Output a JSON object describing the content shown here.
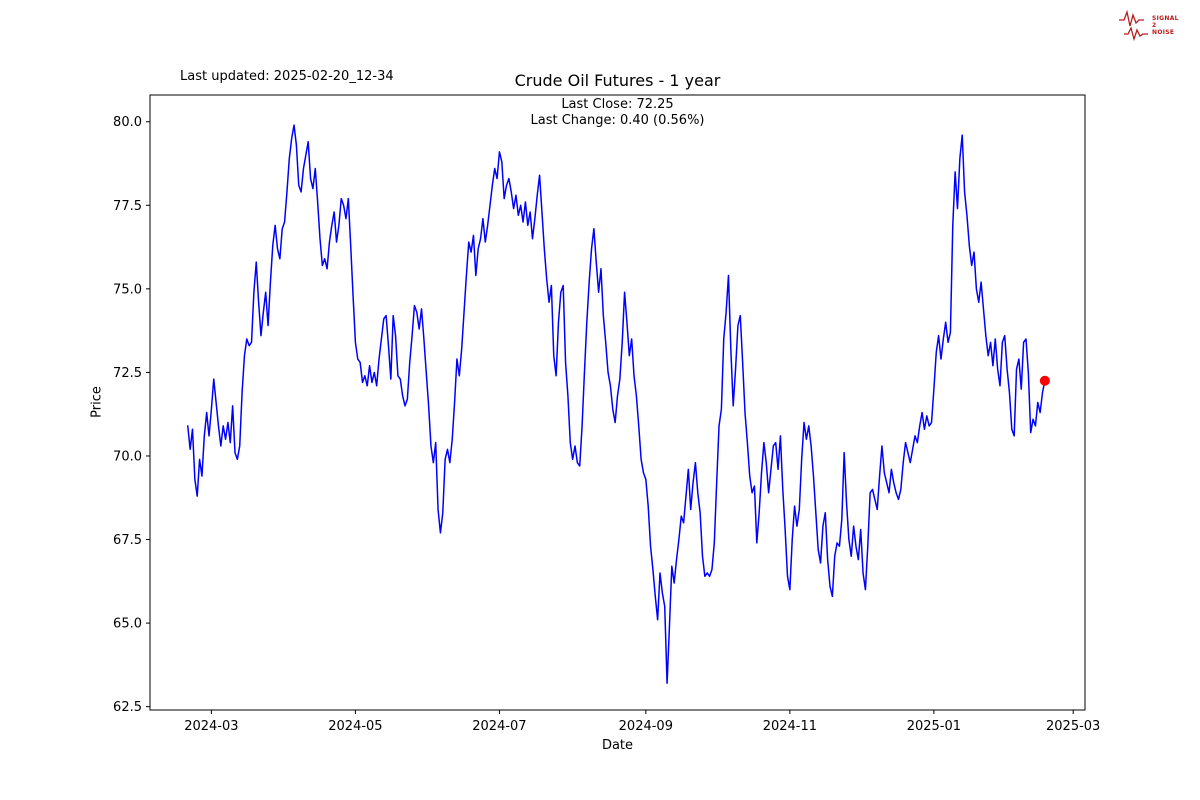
{
  "header": {
    "last_updated": "Last updated: 2025-02-20_12-34",
    "title": "Crude Oil Futures - 1 year",
    "subtitle_line1": "Last Close: 72.25",
    "subtitle_line2": "Last Change: 0.40 (0.56%)"
  },
  "logo": {
    "line1": "SIGNAL",
    "line2": "2",
    "line3": "NOISE",
    "color": "#b91c1c"
  },
  "chart_data": {
    "type": "line",
    "title": "Crude Oil Futures - 1 year",
    "xlabel": "Date",
    "ylabel": "Price",
    "last_close": 72.25,
    "last_change": "0.40 (0.56%)",
    "line_color": "#0000ff",
    "marker_color": "#ff0000",
    "grid": false,
    "legend": "none",
    "ylim": [
      62.4,
      80.8
    ],
    "xlim_days": [
      -16,
      380
    ],
    "x_start_date": "2024-02-20",
    "x_ticks": [
      {
        "day": 10,
        "label": "2024-03"
      },
      {
        "day": 71,
        "label": "2024-05"
      },
      {
        "day": 132,
        "label": "2024-07"
      },
      {
        "day": 194,
        "label": "2024-09"
      },
      {
        "day": 255,
        "label": "2024-11"
      },
      {
        "day": 316,
        "label": "2025-01"
      },
      {
        "day": 375,
        "label": "2025-03"
      }
    ],
    "y_ticks": [
      62.5,
      65.0,
      67.5,
      70.0,
      72.5,
      75.0,
      77.5,
      80.0
    ],
    "series": [
      {
        "name": "Crude Oil Futures",
        "start_day": 0,
        "step_days": 1,
        "values": [
          70.9,
          70.2,
          70.8,
          69.3,
          68.8,
          69.9,
          69.4,
          70.6,
          71.3,
          70.6,
          71.4,
          72.3,
          71.6,
          70.9,
          70.3,
          70.9,
          70.5,
          71.0,
          70.4,
          71.5,
          70.1,
          69.9,
          70.3,
          71.9,
          73.0,
          73.5,
          73.3,
          73.4,
          74.9,
          75.8,
          74.6,
          73.6,
          74.3,
          74.9,
          73.9,
          75.2,
          76.3,
          76.9,
          76.2,
          75.9,
          76.8,
          77.0,
          77.9,
          78.9,
          79.5,
          79.9,
          79.3,
          78.1,
          77.9,
          78.6,
          79.0,
          79.4,
          78.3,
          78.0,
          78.6,
          77.6,
          76.5,
          75.7,
          75.9,
          75.6,
          76.4,
          76.9,
          77.3,
          76.4,
          76.9,
          77.7,
          77.5,
          77.1,
          77.7,
          76.3,
          74.8,
          73.4,
          72.9,
          72.8,
          72.2,
          72.4,
          72.1,
          72.7,
          72.2,
          72.5,
          72.1,
          72.9,
          73.5,
          74.1,
          74.2,
          73.3,
          72.3,
          74.2,
          73.6,
          72.4,
          72.3,
          71.8,
          71.5,
          71.7,
          72.8,
          73.6,
          74.5,
          74.3,
          73.8,
          74.4,
          73.5,
          72.5,
          71.5,
          70.3,
          69.8,
          70.4,
          68.4,
          67.7,
          68.3,
          69.9,
          70.2,
          69.8,
          70.5,
          71.6,
          72.9,
          72.4,
          73.2,
          74.3,
          75.4,
          76.4,
          76.1,
          76.6,
          75.4,
          76.2,
          76.5,
          77.1,
          76.4,
          76.9,
          77.5,
          78.1,
          78.6,
          78.3,
          79.1,
          78.8,
          77.7,
          78.1,
          78.3,
          77.9,
          77.4,
          77.8,
          77.2,
          77.5,
          77.0,
          77.6,
          76.9,
          77.3,
          76.5,
          77.1,
          77.8,
          78.4,
          77.3,
          76.2,
          75.3,
          74.6,
          75.1,
          73.0,
          72.4,
          74.0,
          74.9,
          75.1,
          72.8,
          71.8,
          70.4,
          69.9,
          70.3,
          69.8,
          69.7,
          70.9,
          72.5,
          74.0,
          75.2,
          76.2,
          76.8,
          75.8,
          74.9,
          75.6,
          74.2,
          73.4,
          72.5,
          72.1,
          71.4,
          71.0,
          71.8,
          72.3,
          73.4,
          74.9,
          74.0,
          73.0,
          73.5,
          72.4,
          71.8,
          70.9,
          69.9,
          69.5,
          69.3,
          68.5,
          67.3,
          66.6,
          65.8,
          65.1,
          66.5,
          65.9,
          65.5,
          63.2,
          64.9,
          66.7,
          66.2,
          66.9,
          67.5,
          68.2,
          68.0,
          68.8,
          69.6,
          68.4,
          69.2,
          69.8,
          68.9,
          68.3,
          67.0,
          66.4,
          66.5,
          66.4,
          66.6,
          67.4,
          69.2,
          70.9,
          71.4,
          73.5,
          74.3,
          75.4,
          73.2,
          71.5,
          72.6,
          73.9,
          74.2,
          72.8,
          71.3,
          70.4,
          69.4,
          68.9,
          69.1,
          67.4,
          68.3,
          69.5,
          70.4,
          69.8,
          68.9,
          69.6,
          70.3,
          70.4,
          69.6,
          70.6,
          69.0,
          67.8,
          66.4,
          66.0,
          67.5,
          68.5,
          67.9,
          68.4,
          69.9,
          71.0,
          70.5,
          70.9,
          70.3,
          69.4,
          68.3,
          67.2,
          66.8,
          67.9,
          68.3,
          66.9,
          66.1,
          65.8,
          67.0,
          67.4,
          67.3,
          68.1,
          70.1,
          68.6,
          67.5,
          67.0,
          67.9,
          67.3,
          66.9,
          67.8,
          66.5,
          66.0,
          67.3,
          68.9,
          69.0,
          68.7,
          68.4,
          69.4,
          70.3,
          69.5,
          69.2,
          68.9,
          69.6,
          69.2,
          68.9,
          68.7,
          69.0,
          69.8,
          70.4,
          70.1,
          69.8,
          70.2,
          70.6,
          70.4,
          70.9,
          71.3,
          70.8,
          71.2,
          70.9,
          71.0,
          72.0,
          73.1,
          73.6,
          72.9,
          73.5,
          74.0,
          73.4,
          73.7,
          76.9,
          78.5,
          77.4,
          78.9,
          79.6,
          77.9,
          77.2,
          76.3,
          75.7,
          76.1,
          75.0,
          74.6,
          75.2,
          74.4,
          73.6,
          73.0,
          73.4,
          72.7,
          73.5,
          72.6,
          72.1,
          73.4,
          73.6,
          72.6,
          71.9,
          70.8,
          70.6,
          72.6,
          72.9,
          72.0,
          73.4,
          73.5,
          72.5,
          70.7,
          71.1,
          70.9,
          71.6,
          71.3,
          71.9,
          72.25
        ]
      }
    ]
  }
}
